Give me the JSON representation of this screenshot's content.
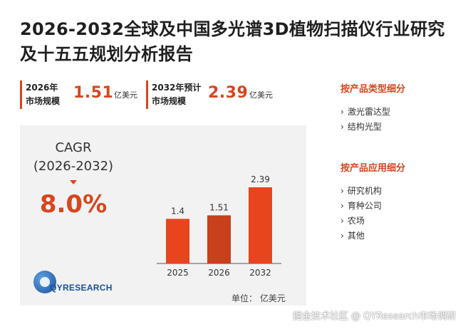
{
  "title": "2026-2032全球及中国多光谱3D植物扫描仪行业研究及十五五规划分析报告",
  "stats": [
    {
      "label_line1": "2026年",
      "label_line2": "市场规模",
      "value": "1.51",
      "unit": "亿美元"
    },
    {
      "label_line1": "2032年预计",
      "label_line2": "市场规模",
      "value": "2.39",
      "unit": "亿美元"
    }
  ],
  "cagr": {
    "label_line1": "CAGR",
    "label_line2": "(2026-2032)",
    "value": "8.0%"
  },
  "logo_text": "QYRESEARCH",
  "chart_data": {
    "type": "bar",
    "categories": [
      "2025",
      "2026",
      "2032"
    ],
    "values": [
      1.4,
      1.51,
      2.39
    ],
    "value_labels": [
      "1.4",
      "1.51",
      "2.39"
    ],
    "colors": [
      "#e8451e",
      "#c8401c",
      "#e8451e"
    ],
    "unit_label": "单位： 亿美元",
    "ylim": [
      0,
      2.39
    ]
  },
  "side": {
    "type_title": "按产品类型细分",
    "type_items": [
      "激光雷达型",
      "结构光型"
    ],
    "app_title": "按产品应用细分",
    "app_items": [
      "研究机构",
      "育种公司",
      "农场",
      "其他"
    ]
  },
  "footer": "掘金技术社区 @ QYResearch市场调研"
}
